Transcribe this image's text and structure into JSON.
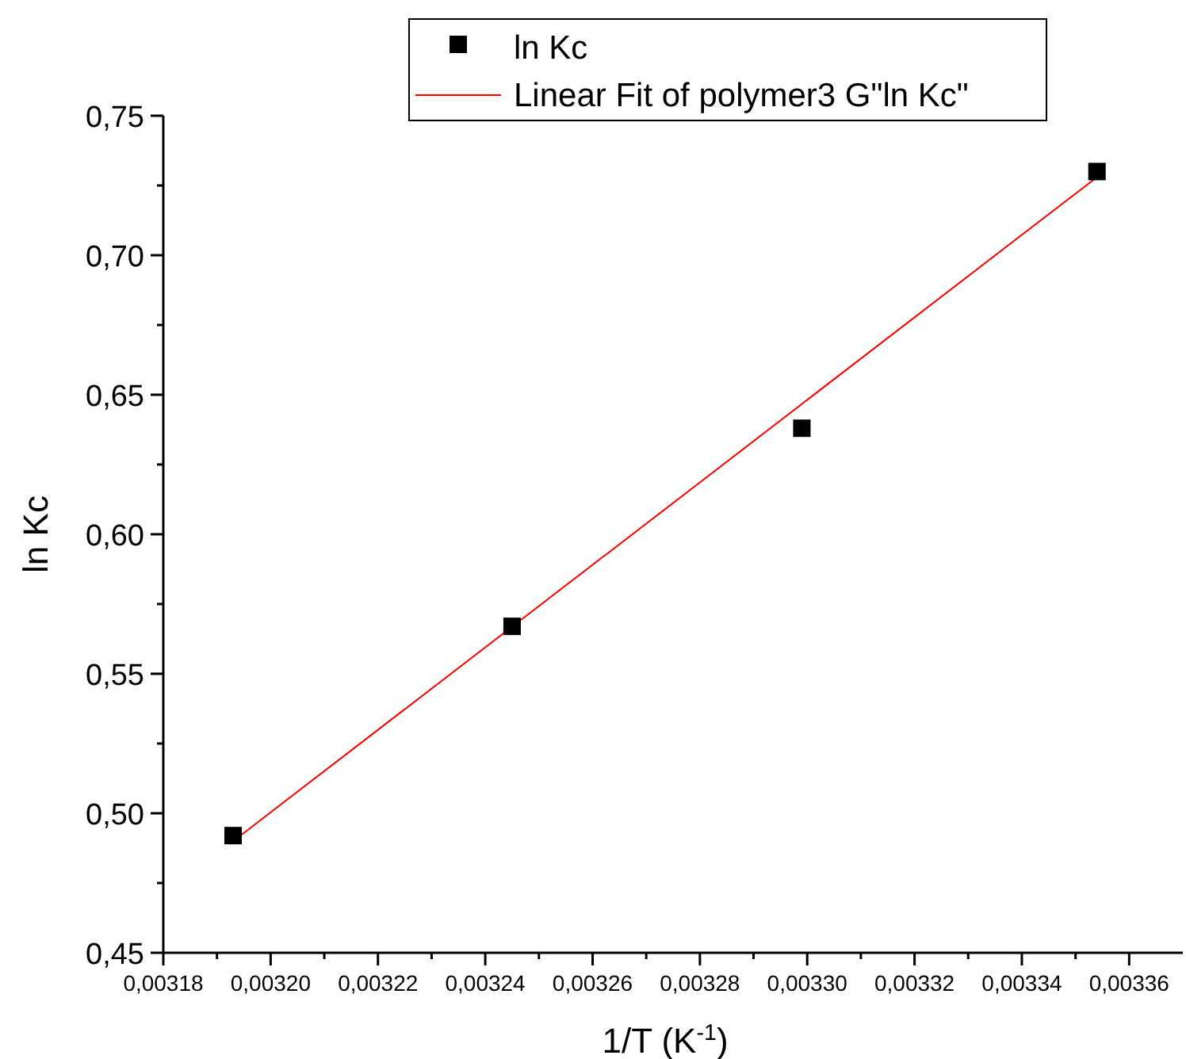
{
  "chart_data": {
    "type": "scatter",
    "xlabel": "1/T (K$^{-1}$)",
    "ylabel": "ln Kc",
    "xlim": [
      0.00318,
      0.00337
    ],
    "xticks": [
      {
        "value": 0.00318,
        "label": "0,00318"
      },
      {
        "value": 0.00319,
        "label": null
      },
      {
        "value": 0.0032,
        "label": "0,00320"
      },
      {
        "value": 0.00321,
        "label": null
      },
      {
        "value": 0.00322,
        "label": "0,00322"
      },
      {
        "value": 0.00323,
        "label": null
      },
      {
        "value": 0.00324,
        "label": "0,00324"
      },
      {
        "value": 0.00325,
        "label": null
      },
      {
        "value": 0.00326,
        "label": "0,00326"
      },
      {
        "value": 0.00327,
        "label": null
      },
      {
        "value": 0.00328,
        "label": "0,00328"
      },
      {
        "value": 0.00329,
        "label": null
      },
      {
        "value": 0.0033,
        "label": "0,00330"
      },
      {
        "value": 0.00331,
        "label": null
      },
      {
        "value": 0.00332,
        "label": "0,00332"
      },
      {
        "value": 0.00333,
        "label": null
      },
      {
        "value": 0.00334,
        "label": "0,00334"
      },
      {
        "value": 0.00335,
        "label": null
      },
      {
        "value": 0.00336,
        "label": "0,00336"
      }
    ],
    "ylim": [
      0.45,
      0.75
    ],
    "yticks": [
      {
        "value": 0.45,
        "label": "0,45"
      },
      {
        "value": 0.475,
        "label": null
      },
      {
        "value": 0.5,
        "label": "0,50"
      },
      {
        "value": 0.525,
        "label": null
      },
      {
        "value": 0.55,
        "label": "0,55"
      },
      {
        "value": 0.575,
        "label": null
      },
      {
        "value": 0.6,
        "label": "0,60"
      },
      {
        "value": 0.625,
        "label": null
      },
      {
        "value": 0.65,
        "label": "0,65"
      },
      {
        "value": 0.675,
        "label": null
      },
      {
        "value": 0.7,
        "label": "0,70"
      },
      {
        "value": 0.725,
        "label": null
      },
      {
        "value": 0.75,
        "label": "0,75"
      }
    ],
    "legend": "top",
    "grid": false,
    "series": [
      {
        "name": "ln Kc",
        "marker": "square",
        "color": "#000000",
        "x": [
          0.003193,
          0.003245,
          0.003299,
          0.003354
        ],
        "values": [
          0.492,
          0.567,
          0.638,
          0.73
        ]
      },
      {
        "name": "Linear Fit of polymer3 G\"ln Kc\"",
        "type": "line",
        "marker": "none",
        "line_style": "solid",
        "color": "#ff0000",
        "x": [
          0.003193,
          0.003354
        ],
        "values": [
          0.49,
          0.728
        ]
      }
    ]
  }
}
